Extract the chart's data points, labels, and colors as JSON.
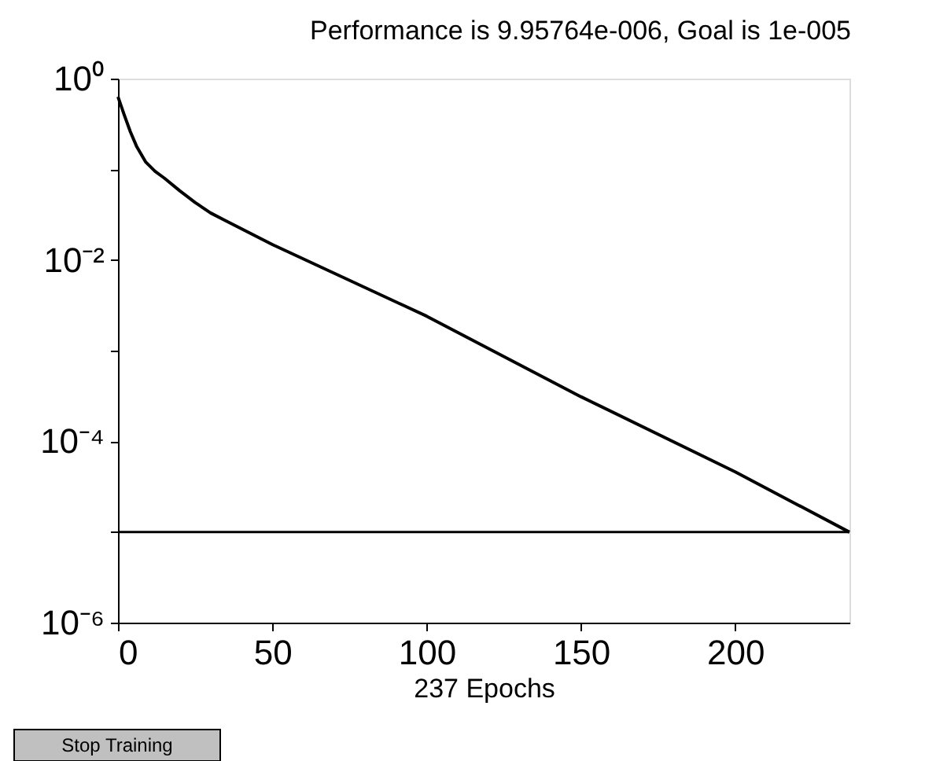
{
  "chart_data": {
    "type": "line",
    "title": "Performance is 9.95764e-006, Goal is 1e-005",
    "xlabel": "237 Epochs",
    "x": [
      0,
      2,
      4,
      6,
      9,
      12,
      15,
      20,
      25,
      30,
      35,
      50,
      100,
      150,
      200,
      237
    ],
    "series": [
      {
        "color": "#000000",
        "values": [
          0.63,
          0.4,
          0.26,
          0.18,
          0.12,
          0.095,
          0.08,
          0.058,
          0.043,
          0.033,
          0.027,
          0.0148,
          0.0024,
          0.00031,
          4.6e-05,
          9.96e-06
        ]
      }
    ],
    "log": "y",
    "xlim": [
      0,
      237
    ],
    "ylim": [
      1e-06,
      1
    ],
    "xticks": [
      0,
      50,
      100,
      150,
      200
    ],
    "yticks": [
      {
        "value": 1,
        "label": "10⁰"
      },
      {
        "value": 0.1,
        "label": null
      },
      {
        "value": 0.01,
        "label": "10⁻²"
      },
      {
        "value": 0.001,
        "label": null
      },
      {
        "value": 0.0001,
        "label": "10⁻⁴"
      },
      {
        "value": 1e-05,
        "label": null
      },
      {
        "value": 1e-06,
        "label": "10⁻⁶"
      }
    ],
    "ref_lines": [
      {
        "axis": "y",
        "value": 1e-05,
        "color": "#000000"
      }
    ],
    "annotations": [
      "Stop Training"
    ],
    "grid": false,
    "marker": "none",
    "line_style": "solid"
  }
}
